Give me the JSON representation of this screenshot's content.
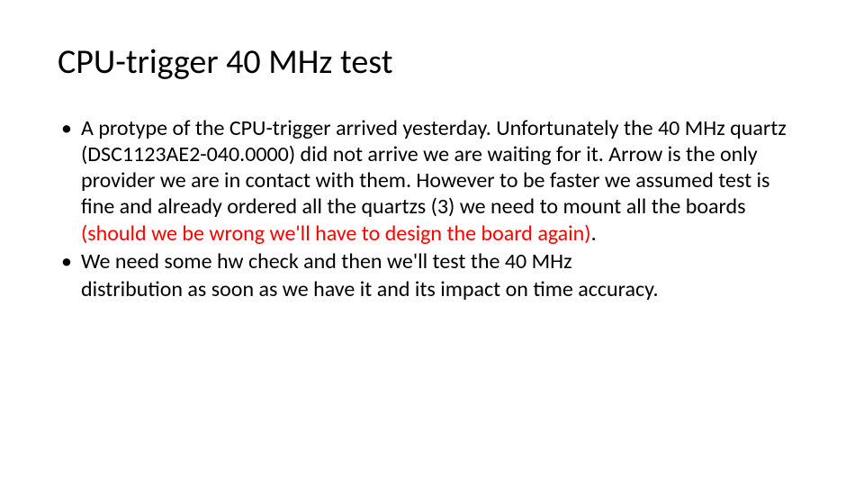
{
  "colors": {
    "background": "#ffffff",
    "text": "#000000",
    "highlight": "#ff0000"
  },
  "typography": {
    "family": "Calibri",
    "title_fontsize": 38,
    "body_fontsize": 24,
    "title_weight": 400,
    "body_weight": 400
  },
  "title": "CPU-trigger 40 MHz test",
  "bullets": [
    {
      "text_plain": "A protype of the CPU-trigger arrived yesterday. Unfortunately the 40 MHz quartz (DSC1123AE2-040.0000) did not arrive we are waiting for it. Arrow is the only provider we are in contact with them. However to be faster we assumed test is fine and already ordered all the quartzs (3) we need to mount all the boards (should we be wrong we'll have to design the board again).",
      "spans": [
        {
          "text": "A protype of the CPU-trigger arrived yesterday. Unfortunately the 40 MHz quartz (DSC1123AE2-040.0000) did not arrive we are waiting for it. Arrow is the only provider we are in contact with them. However to be faster we assumed test is fine and already ordered all the quartzs (3) we need to mount all the boards ",
          "color": "#000000"
        },
        {
          "text": "(should we be wrong we'll have to design the board again)",
          "color": "#ff0000"
        },
        {
          "text": ".",
          "color": "#000000"
        }
      ]
    },
    {
      "text_plain": "We need some hw check and then we'll test the 40 MHz",
      "spans": [
        {
          "text": "We need some hw check and then we'll test the 40 MHz",
          "color": "#000000"
        }
      ]
    }
  ],
  "continuation": {
    "text": "distribution as soon as we have it and its impact on time accuracy.",
    "color": "#000000"
  }
}
